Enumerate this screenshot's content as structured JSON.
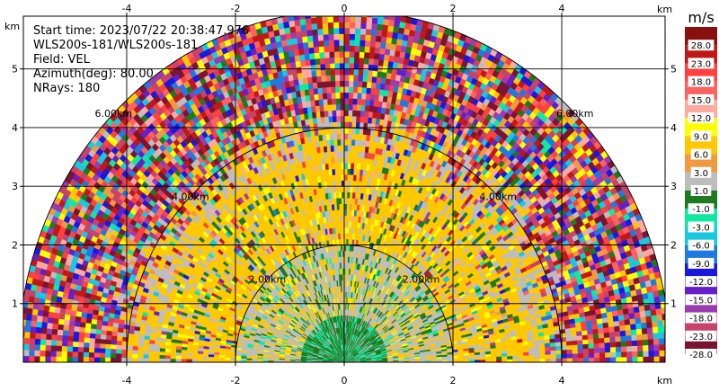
{
  "chart_data": {
    "type": "heatmap",
    "subtype": "radar-rhi-sector",
    "x_unit": "km",
    "y_unit": "km",
    "xlim": [
      -5.9,
      5.9
    ],
    "ylim": [
      0,
      5.9
    ],
    "xticks": [
      -4,
      -2,
      0,
      2,
      4
    ],
    "yticks": [
      1,
      2,
      3,
      4,
      5
    ],
    "max_range_km": 6.0,
    "range_rings": [
      {
        "radius_km": 2.0,
        "label": "2.00km"
      },
      {
        "radius_km": 4.0,
        "label": "4.00km"
      },
      {
        "radius_km": 6.0,
        "label": "6.00km"
      }
    ],
    "info_lines": [
      "Start time: 2023/07/22 20:38:47.976",
      "WLS200s-181/WLS200s-181",
      "Field: VEL",
      "Azimuth(deg): 80.00",
      "NRays: 180"
    ],
    "field": "VEL",
    "grid": true,
    "colorbar": {
      "unit": "m/s",
      "levels": [
        -28.0,
        -23.0,
        -18.0,
        -15.0,
        -12.0,
        -9.0,
        -6.0,
        -3.0,
        -1.0,
        1.0,
        3.0,
        6.0,
        9.0,
        12.0,
        15.0,
        18.0,
        23.0,
        28.0
      ],
      "tick_labels": [
        "-28.0",
        "-23.0",
        "-18.0",
        "-15.0",
        "-12.0",
        "-9.0",
        "-6.0",
        "-3.0",
        "-1.0",
        "1.0",
        "3.0",
        "6.0",
        "9.0",
        "12.0",
        "15.0",
        "18.0",
        "23.0",
        "28.0"
      ],
      "colors": [
        "#7a1430",
        "#c8426a",
        "#9a3cb0",
        "#6420c8",
        "#1818e0",
        "#1e7ae0",
        "#18c8e0",
        "#10e8a0",
        "#1e7a1e",
        "#bdbdbd",
        "#f09a40",
        "#ffc800",
        "#ffff00",
        "#ffaaa0",
        "#ff6060",
        "#ff4040",
        "#c01818",
        "#8a1010"
      ]
    },
    "velocity_field_approx": [
      {
        "range_km": [
          0,
          0.8
        ],
        "value": 0.0
      },
      {
        "range_km": [
          0.8,
          2.0
        ],
        "value": 2.0
      },
      {
        "range_km": [
          2.0,
          3.4
        ],
        "value": 6.0
      },
      {
        "range_km": [
          3.4,
          4.4
        ],
        "value": "noisy"
      },
      {
        "range_km": [
          4.4,
          6.0
        ],
        "value": "noise"
      }
    ]
  }
}
